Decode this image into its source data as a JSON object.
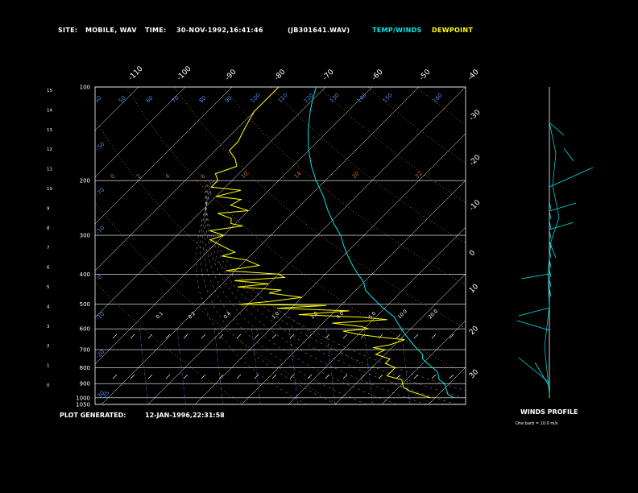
{
  "header": {
    "site_label": "SITE:",
    "site_value": "MOBILE, WAV",
    "time_label": "TIME:",
    "time_value": "30-NOV-1992,16:41:46",
    "file_id": "(JB301641.WAV)",
    "temp_winds_label": "TEMP/WINDS",
    "dewpoint_label": "DEWPOINT"
  },
  "footer": {
    "plot_generated_label": "PLOT GENERATED:",
    "plot_generated_value": "12-JAN-1996,22:31:58",
    "winds_profile_label": "WINDS PROFILE",
    "barb_note": "One barb = 10.0 m/s"
  },
  "colors": {
    "temperature": "#00e5e5",
    "dewpoint": "#ffff00",
    "isotherm": "#ffffff",
    "dry_adiabat": "#c07030",
    "moist_adiabat": "#c08040",
    "mixing_ratio": "#4a86e8"
  },
  "chart_data": {
    "type": "line",
    "chart_kind": "skew-T log-P sounding",
    "pressure_axis": {
      "labels": [
        "100",
        "200",
        "300",
        "400",
        "500",
        "600",
        "700",
        "800",
        "900",
        "1000",
        "1050"
      ],
      "values": [
        100,
        200,
        300,
        400,
        500,
        600,
        700,
        800,
        900,
        1000,
        1050
      ],
      "scale": "log"
    },
    "height_axis_km": [
      "15",
      "14",
      "13",
      "12",
      "11",
      "10",
      "9",
      "8",
      "7",
      "6",
      "5",
      "4",
      "3",
      "2",
      "1",
      "0"
    ],
    "top_temp_labels": [
      "-110",
      "-100",
      "-90",
      "-80",
      "-70",
      "-60",
      "-50",
      "-40"
    ],
    "right_temp_labels": [
      "-30",
      "-20",
      "-10",
      "0",
      "10",
      "20",
      "30"
    ],
    "mixing_ratio_labels": [
      "50",
      "50",
      "60",
      "70",
      "80",
      "90",
      "100",
      "110",
      "120",
      "130",
      "140",
      "150",
      "160"
    ],
    "left_inner_labels": [
      "-50",
      "-70",
      "-10",
      "-0",
      "-10",
      "-20",
      "-30",
      "-35"
    ],
    "dry_adiabat_labels": [
      "0",
      "2",
      "4",
      "6",
      "10",
      "14",
      "20",
      "32"
    ],
    "moist_labels": [
      "0.1",
      "0.2",
      "0.4",
      "1.0",
      "2.0",
      "4.0",
      "5.0",
      "10.0",
      "20.0"
    ],
    "series": [
      {
        "name": "TEMP/WINDS",
        "pressure": [
          1000,
          975,
          950,
          925,
          900,
          875,
          850,
          825,
          800,
          775,
          750,
          725,
          700,
          675,
          650,
          625,
          600,
          575,
          550,
          525,
          500,
          475,
          450,
          425,
          400,
          375,
          350,
          325,
          300,
          275,
          250,
          225,
          200,
          180,
          160,
          140,
          120,
          110,
          100
        ],
        "temperature": [
          24,
          22,
          21,
          20,
          19,
          17,
          16,
          15,
          13,
          11,
          9,
          8,
          6,
          4,
          2,
          0,
          -2,
          -4,
          -6,
          -9,
          -12,
          -15,
          -18,
          -20,
          -23,
          -26,
          -29,
          -32,
          -35,
          -39,
          -43,
          -47,
          -52,
          -56,
          -60,
          -64,
          -68,
          -70,
          -72
        ]
      },
      {
        "name": "DEWPOINT",
        "pressure": [
          1000,
          975,
          950,
          925,
          900,
          875,
          850,
          825,
          800,
          775,
          750,
          725,
          700,
          690,
          675,
          650,
          640,
          625,
          610,
          600,
          590,
          575,
          560,
          550,
          540,
          525,
          515,
          505,
          500,
          490,
          475,
          460,
          450,
          440,
          430,
          420,
          410,
          400,
          390,
          375,
          360,
          350,
          340,
          325,
          310,
          300,
          290,
          280,
          275,
          265,
          255,
          250,
          240,
          230,
          225,
          215,
          210,
          200,
          190,
          180,
          170,
          160,
          150,
          140,
          130,
          120,
          110,
          100
        ],
        "dewpoint": [
          19,
          16,
          13,
          11,
          10,
          9,
          5,
          5,
          5,
          2,
          2,
          -2,
          -1,
          -4,
          -1,
          1,
          -4,
          -10,
          -14,
          -9,
          -11,
          -18,
          -7,
          -13,
          -27,
          -17,
          -33,
          -23,
          -42,
          -36,
          -30,
          -38,
          -36,
          -46,
          -40,
          -48,
          -38,
          -40,
          -52,
          -46,
          -50,
          -56,
          -54,
          -58,
          -62,
          -60,
          -64,
          -58,
          -61,
          -62,
          -66,
          -60,
          -65,
          -64,
          -70,
          -66,
          -73,
          -73,
          -75,
          -72,
          -74,
          -77,
          -77,
          -78,
          -79,
          -80,
          -80,
          -80
        ]
      }
    ],
    "xlabel": "",
    "ylabel": ""
  }
}
